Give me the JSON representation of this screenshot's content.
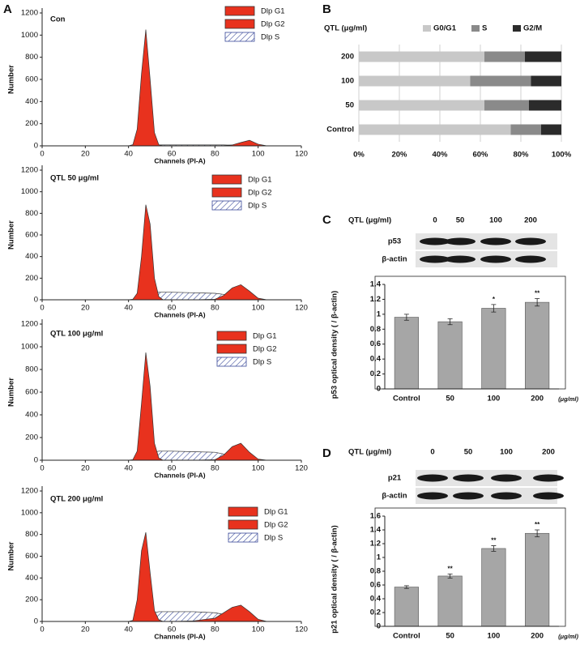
{
  "chart_data": [
    {
      "type": "area",
      "panel_label": "A",
      "title": "Con",
      "xlabel": "Channels (PI-A)",
      "ylabel": "Number",
      "xlim": [
        0,
        120
      ],
      "xticks": [
        0,
        20,
        40,
        60,
        80,
        100,
        120
      ],
      "ylim": [
        0,
        1200
      ],
      "yticks": [
        0,
        200,
        400,
        600,
        800,
        1000,
        1200
      ],
      "x": [
        40,
        42,
        44,
        46,
        48,
        50,
        52,
        54,
        56,
        60,
        70,
        80,
        84,
        88,
        92,
        96,
        100,
        104
      ],
      "series": [
        {
          "name": "Dlp G1",
          "color": "#e8321e",
          "values": [
            0,
            10,
            150,
            650,
            1050,
            600,
            120,
            10,
            0,
            0,
            0,
            0,
            0,
            0,
            0,
            0,
            0,
            0
          ]
        },
        {
          "name": "Dlp G2",
          "color": "#e8321e",
          "values": [
            0,
            0,
            0,
            0,
            0,
            0,
            0,
            0,
            0,
            0,
            0,
            0,
            2,
            8,
            30,
            50,
            15,
            0
          ]
        },
        {
          "name": "Dlp S",
          "color": "#3a4a9a",
          "values": [
            0,
            0,
            0,
            0,
            0,
            5,
            8,
            8,
            8,
            8,
            8,
            8,
            8,
            6,
            4,
            2,
            0,
            0
          ]
        }
      ]
    },
    {
      "type": "area",
      "title": "QTL 50 μg/ml",
      "xlabel": "Channels (PI-A)",
      "ylabel": "Number",
      "xlim": [
        0,
        120
      ],
      "xticks": [
        0,
        20,
        40,
        60,
        80,
        100,
        120
      ],
      "ylim": [
        0,
        1200
      ],
      "yticks": [
        0,
        200,
        400,
        600,
        800,
        1000,
        1200
      ],
      "x": [
        40,
        42,
        44,
        46,
        48,
        50,
        52,
        54,
        56,
        60,
        70,
        80,
        84,
        88,
        92,
        96,
        100,
        104
      ],
      "series": [
        {
          "name": "Dlp G1",
          "color": "#e8321e",
          "values": [
            0,
            5,
            60,
            400,
            880,
            700,
            200,
            30,
            0,
            0,
            0,
            0,
            0,
            0,
            0,
            0,
            0,
            0
          ]
        },
        {
          "name": "Dlp G2",
          "color": "#e8321e",
          "values": [
            0,
            0,
            0,
            0,
            0,
            0,
            0,
            0,
            0,
            0,
            0,
            5,
            40,
            110,
            140,
            80,
            15,
            0
          ]
        },
        {
          "name": "Dlp S",
          "color": "#3a4a9a",
          "values": [
            0,
            0,
            0,
            0,
            10,
            40,
            60,
            70,
            70,
            70,
            65,
            60,
            50,
            35,
            15,
            5,
            0,
            0
          ]
        }
      ]
    },
    {
      "type": "area",
      "title": "QTL 100 μg/ml",
      "xlabel": "Channels (PI-A)",
      "ylabel": "Number",
      "xlim": [
        0,
        120
      ],
      "xticks": [
        0,
        20,
        40,
        60,
        80,
        100,
        120
      ],
      "ylim": [
        0,
        1200
      ],
      "yticks": [
        0,
        200,
        400,
        600,
        800,
        1000,
        1200
      ],
      "x": [
        40,
        42,
        44,
        46,
        48,
        50,
        52,
        54,
        56,
        60,
        70,
        80,
        84,
        88,
        92,
        96,
        100,
        104
      ],
      "series": [
        {
          "name": "Dlp G1",
          "color": "#e8321e",
          "values": [
            0,
            5,
            80,
            500,
            950,
            650,
            150,
            20,
            0,
            0,
            0,
            0,
            0,
            0,
            0,
            0,
            0,
            0
          ]
        },
        {
          "name": "Dlp G2",
          "color": "#e8321e",
          "values": [
            0,
            0,
            0,
            0,
            0,
            0,
            0,
            0,
            0,
            0,
            0,
            5,
            45,
            120,
            150,
            70,
            10,
            0
          ]
        },
        {
          "name": "Dlp S",
          "color": "#3a4a9a",
          "values": [
            0,
            0,
            0,
            0,
            10,
            40,
            70,
            80,
            80,
            80,
            75,
            70,
            55,
            40,
            15,
            5,
            0,
            0
          ]
        }
      ]
    },
    {
      "type": "area",
      "title": "QTL 200 μg/ml",
      "xlabel": "Channels (PI-A)",
      "ylabel": "Number",
      "xlim": [
        0,
        120
      ],
      "xticks": [
        0,
        20,
        40,
        60,
        80,
        100,
        120
      ],
      "ylim": [
        0,
        1200
      ],
      "yticks": [
        0,
        200,
        400,
        600,
        800,
        1000,
        1200
      ],
      "x": [
        40,
        42,
        44,
        46,
        48,
        50,
        52,
        54,
        56,
        60,
        70,
        80,
        84,
        88,
        92,
        96,
        100,
        104
      ],
      "series": [
        {
          "name": "Dlp G1",
          "color": "#e8321e",
          "values": [
            0,
            10,
            200,
            650,
            820,
            450,
            100,
            15,
            0,
            0,
            0,
            0,
            0,
            0,
            0,
            0,
            0,
            0
          ]
        },
        {
          "name": "Dlp G2",
          "color": "#e8321e",
          "values": [
            0,
            0,
            0,
            0,
            0,
            0,
            0,
            0,
            0,
            0,
            5,
            30,
            80,
            130,
            150,
            90,
            20,
            0
          ]
        },
        {
          "name": "Dlp S",
          "color": "#3a4a9a",
          "values": [
            0,
            0,
            0,
            5,
            20,
            60,
            80,
            90,
            90,
            90,
            90,
            80,
            65,
            45,
            20,
            5,
            0,
            0
          ]
        }
      ]
    },
    {
      "type": "bar",
      "orientation": "horizontal",
      "stacked": true,
      "panel_label": "B",
      "legend_title": "QTL (μg/ml)",
      "categories": [
        "Control",
        "50",
        "100",
        "200"
      ],
      "xlim": [
        0,
        100
      ],
      "xticks": [
        {
          "value": 0,
          "label": "0%"
        },
        {
          "value": 20,
          "label": "20%"
        },
        {
          "value": 40,
          "label": "40%"
        },
        {
          "value": 60,
          "label": "60%"
        },
        {
          "value": 80,
          "label": "80%"
        },
        {
          "value": 100,
          "label": "100%"
        }
      ],
      "grid": true,
      "series": [
        {
          "name": "G0/G1",
          "color": "#c8c8c8",
          "values": [
            75,
            62,
            55,
            62
          ]
        },
        {
          "name": "S",
          "color": "#8a8a8a",
          "values": [
            15,
            22,
            30,
            20
          ]
        },
        {
          "name": "G2/M",
          "color": "#2b2b2b",
          "values": [
            10,
            16,
            15,
            18
          ]
        }
      ]
    },
    {
      "type": "bar",
      "panel_label": "C",
      "blot": {
        "header": "QTL (μg/ml)",
        "lanes": [
          "0",
          "50",
          "100",
          "200"
        ],
        "rows": [
          "p53",
          "β-actin"
        ]
      },
      "ylabel": "p53 optical density ( / β-actin)",
      "unit": "(μg/ml)",
      "categories": [
        "Control",
        "50",
        "100",
        "200"
      ],
      "values": [
        0.96,
        0.9,
        1.08,
        1.16
      ],
      "errors": [
        0.04,
        0.04,
        0.05,
        0.05
      ],
      "significance": [
        null,
        null,
        "*",
        "**"
      ],
      "color": "#a6a6a6",
      "ylim": [
        0,
        1.4
      ],
      "yticks": [
        0,
        0.2,
        0.4,
        0.6,
        0.8,
        1,
        1.2,
        1.4
      ]
    },
    {
      "type": "bar",
      "panel_label": "D",
      "blot": {
        "header": "QTL (μg/ml)",
        "lanes": [
          "0",
          "50",
          "100",
          "200"
        ],
        "rows": [
          "p21",
          "β-actin"
        ]
      },
      "ylabel": "p21 optical density ( / β-actin)",
      "unit": "(μg/ml)",
      "categories": [
        "Control",
        "50",
        "100",
        "200"
      ],
      "values": [
        0.57,
        0.73,
        1.13,
        1.35
      ],
      "errors": [
        0.02,
        0.03,
        0.04,
        0.05
      ],
      "significance": [
        null,
        "**",
        "**",
        "**"
      ],
      "color": "#a6a6a6",
      "ylim": [
        0,
        1.6
      ],
      "yticks": [
        0,
        0.2,
        0.4,
        0.6,
        0.8,
        1,
        1.2,
        1.4,
        1.6
      ]
    }
  ]
}
